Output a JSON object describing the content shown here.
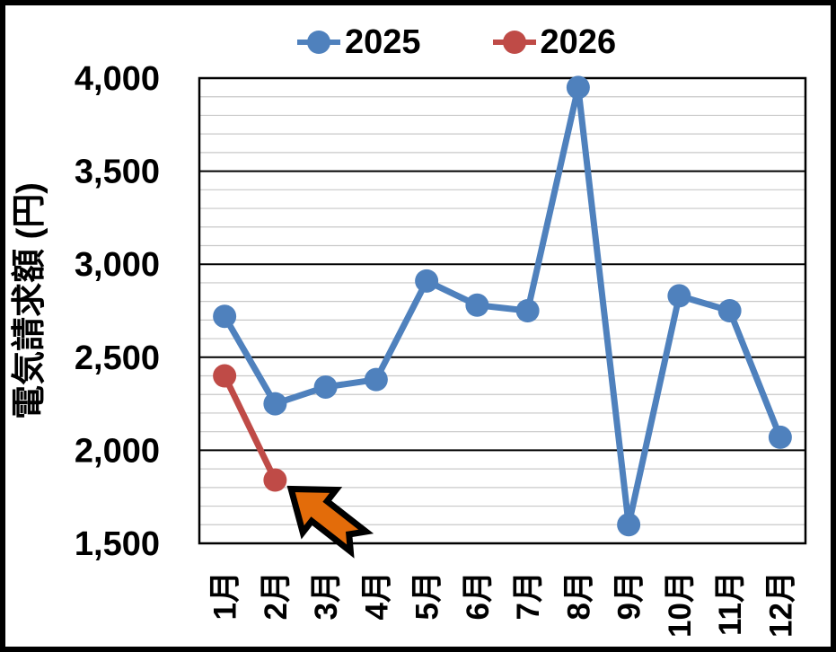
{
  "frame": {
    "border_color": "#000000",
    "background": "#ffffff"
  },
  "legend": {
    "position": "top-center"
  },
  "chart_data": {
    "type": "line",
    "title": "",
    "xlabel": "",
    "ylabel": "電気請求額 (円)",
    "categories": [
      "1月",
      "2月",
      "3月",
      "4月",
      "5月",
      "6月",
      "7月",
      "8月",
      "9月",
      "10月",
      "11月",
      "12月"
    ],
    "series": [
      {
        "name": "2025",
        "color": "#4F81BD",
        "values": [
          2720,
          2250,
          2340,
          2380,
          2910,
          2780,
          2750,
          3950,
          1600,
          2830,
          2750,
          2070
        ]
      },
      {
        "name": "2026",
        "color": "#BF4B47",
        "values": [
          2400,
          1840,
          null,
          null,
          null,
          null,
          null,
          null,
          null,
          null,
          null,
          null
        ]
      }
    ],
    "ylim": [
      1500,
      4000
    ],
    "y_major_unit": 500,
    "y_minor_unit": 100,
    "y_ticks": [
      {
        "value": 4000,
        "label": "4,000"
      },
      {
        "value": 3500,
        "label": "3,500"
      },
      {
        "value": 3000,
        "label": "3,000"
      },
      {
        "value": 2500,
        "label": "2,500"
      },
      {
        "value": 2000,
        "label": "2,000"
      },
      {
        "value": 1500,
        "label": "1,500"
      }
    ],
    "grid": {
      "major_color": "#000000",
      "minor_color": "#C8C8C8",
      "vertical_gridlines": false
    },
    "axis_color": "#000000",
    "legend_position": "top",
    "annotation": {
      "shape": "block-arrow",
      "fill": "#E36C0A",
      "outline": "#000000",
      "points_at": "2026 2月 data point"
    }
  }
}
